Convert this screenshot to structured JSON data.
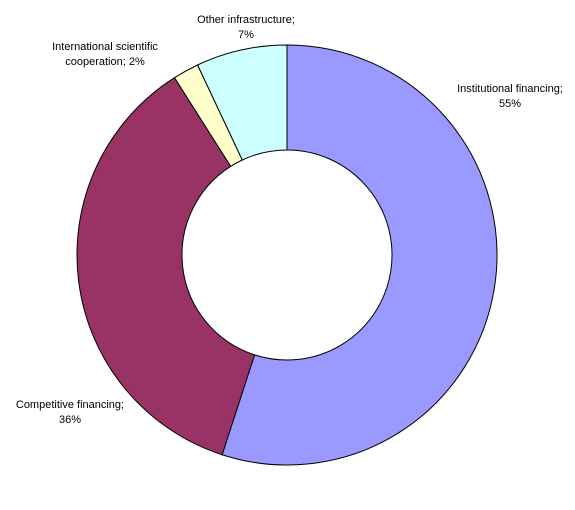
{
  "chart_data": {
    "type": "donut",
    "categories": [
      "Institutional financing;",
      "Competitive financing;",
      "International scientific cooperation;",
      "Other infrastructure;"
    ],
    "values": [
      55,
      36,
      2,
      7
    ],
    "value_labels": [
      "55%",
      "36%",
      "2%",
      "7%"
    ],
    "colors": [
      "#9999ff",
      "#993366",
      "#ffffcc",
      "#ccffff"
    ]
  }
}
